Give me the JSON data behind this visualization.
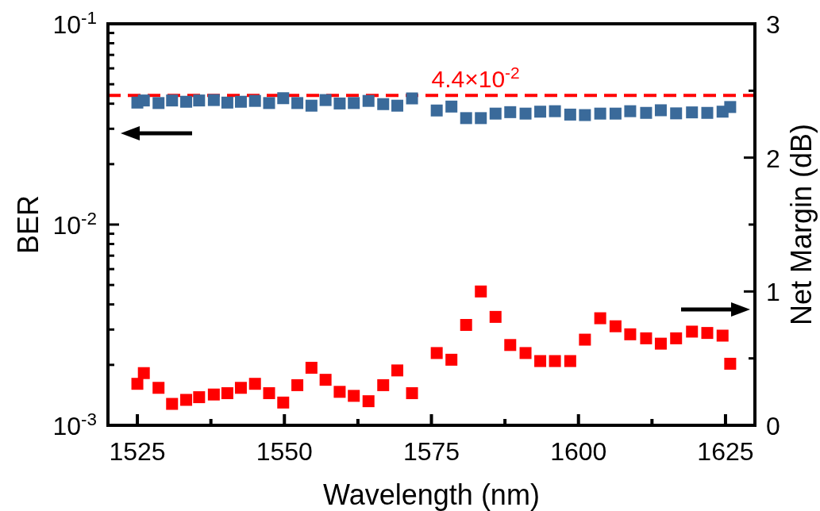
{
  "chart_data": {
    "type": "scatter",
    "xlabel": "Wavelength (nm)",
    "ylabel": "BER",
    "y2label": "Net Margin (dB)",
    "log": "y",
    "marker": "square",
    "grid": false,
    "x": [
      1525,
      1526.1,
      1528.6,
      1530.9,
      1533.3,
      1535.5,
      1538,
      1540.3,
      1542.6,
      1545,
      1547.4,
      1549.8,
      1552.2,
      1554.6,
      1557,
      1559.4,
      1561.8,
      1564.3,
      1566.8,
      1569.2,
      1571.7,
      1575.9,
      1578.4,
      1580.9,
      1583.4,
      1585.9,
      1588.4,
      1591.0,
      1593.5,
      1596.0,
      1598.6,
      1601.1,
      1603.7,
      1606.3,
      1608.8,
      1611.5,
      1614.0,
      1616.6,
      1619.3,
      1621.9,
      1624.5,
      1625.8
    ],
    "series": [
      {
        "color": "#3a6a9a",
        "values": [
          0.0405,
          0.0415,
          0.0403,
          0.0415,
          0.0409,
          0.0415,
          0.0417,
          0.0405,
          0.0409,
          0.0413,
          0.0403,
          0.0426,
          0.0403,
          0.0391,
          0.0417,
          0.0401,
          0.0403,
          0.0413,
          0.0398,
          0.0391,
          0.0425,
          0.037,
          0.0387,
          0.0339,
          0.0339,
          0.0357,
          0.0363,
          0.0357,
          0.0365,
          0.0367,
          0.0353,
          0.0351,
          0.0357,
          0.0357,
          0.0367,
          0.036,
          0.0371,
          0.0358,
          0.0362,
          0.036,
          0.0365,
          0.0385
        ]
      },
      {
        "color": "#ff0000",
        "axis": "y2",
        "values": [
          0.31,
          0.39,
          0.28,
          0.16,
          0.19,
          0.21,
          0.23,
          0.24,
          0.28,
          0.31,
          0.24,
          0.17,
          0.3,
          0.43,
          0.34,
          0.25,
          0.22,
          0.18,
          0.3,
          0.41,
          0.24,
          0.54,
          0.49,
          0.75,
          1.0,
          0.81,
          0.6,
          0.54,
          0.48,
          0.48,
          0.48,
          0.64,
          0.8,
          0.74,
          0.68,
          0.65,
          0.61,
          0.65,
          0.7,
          0.69,
          0.67,
          0.46
        ]
      }
    ],
    "xlim": [
      1520,
      1630
    ],
    "xticks": [
      1525,
      {
        "value": 1537.5,
        "label": null
      },
      1550,
      {
        "value": 1562.5,
        "label": null
      },
      1575,
      {
        "value": 1587.5,
        "label": null
      },
      1600,
      {
        "value": 1612.5,
        "label": null
      },
      1625
    ],
    "ylim": [
      0.001,
      0.1
    ],
    "yticks": [
      {
        "value": 0.001,
        "label": "10$^{-3}$"
      },
      {
        "value": 0.002,
        "label": null
      },
      {
        "value": 0.003,
        "label": null
      },
      {
        "value": 0.004,
        "label": null
      },
      {
        "value": 0.005,
        "label": null
      },
      {
        "value": 0.006,
        "label": null
      },
      {
        "value": 0.007,
        "label": null
      },
      {
        "value": 0.008,
        "label": null
      },
      {
        "value": 0.009,
        "label": null
      },
      {
        "value": 0.01,
        "label": "10$^{-2}$"
      },
      {
        "value": 0.02,
        "label": null
      },
      {
        "value": 0.03,
        "label": null
      },
      {
        "value": 0.04,
        "label": null
      },
      {
        "value": 0.05,
        "label": null
      },
      {
        "value": 0.06,
        "label": null
      },
      {
        "value": 0.07,
        "label": null
      },
      {
        "value": 0.08,
        "label": null
      },
      {
        "value": 0.09,
        "label": null
      },
      {
        "value": 0.1,
        "label": "10$^{-1}$"
      }
    ],
    "y2lim": [
      0,
      3
    ],
    "y2ticks": [
      0,
      {
        "value": 0.5,
        "label": null
      },
      1,
      {
        "value": 1.5,
        "label": null
      },
      2,
      {
        "value": 2.5,
        "label": null
      },
      3
    ],
    "ref_lines": [
      {
        "axis": "y",
        "value": 0.044,
        "label": "4.4×10$^{-2}$",
        "color": "#ff0000",
        "line_style": "dashed"
      }
    ]
  }
}
